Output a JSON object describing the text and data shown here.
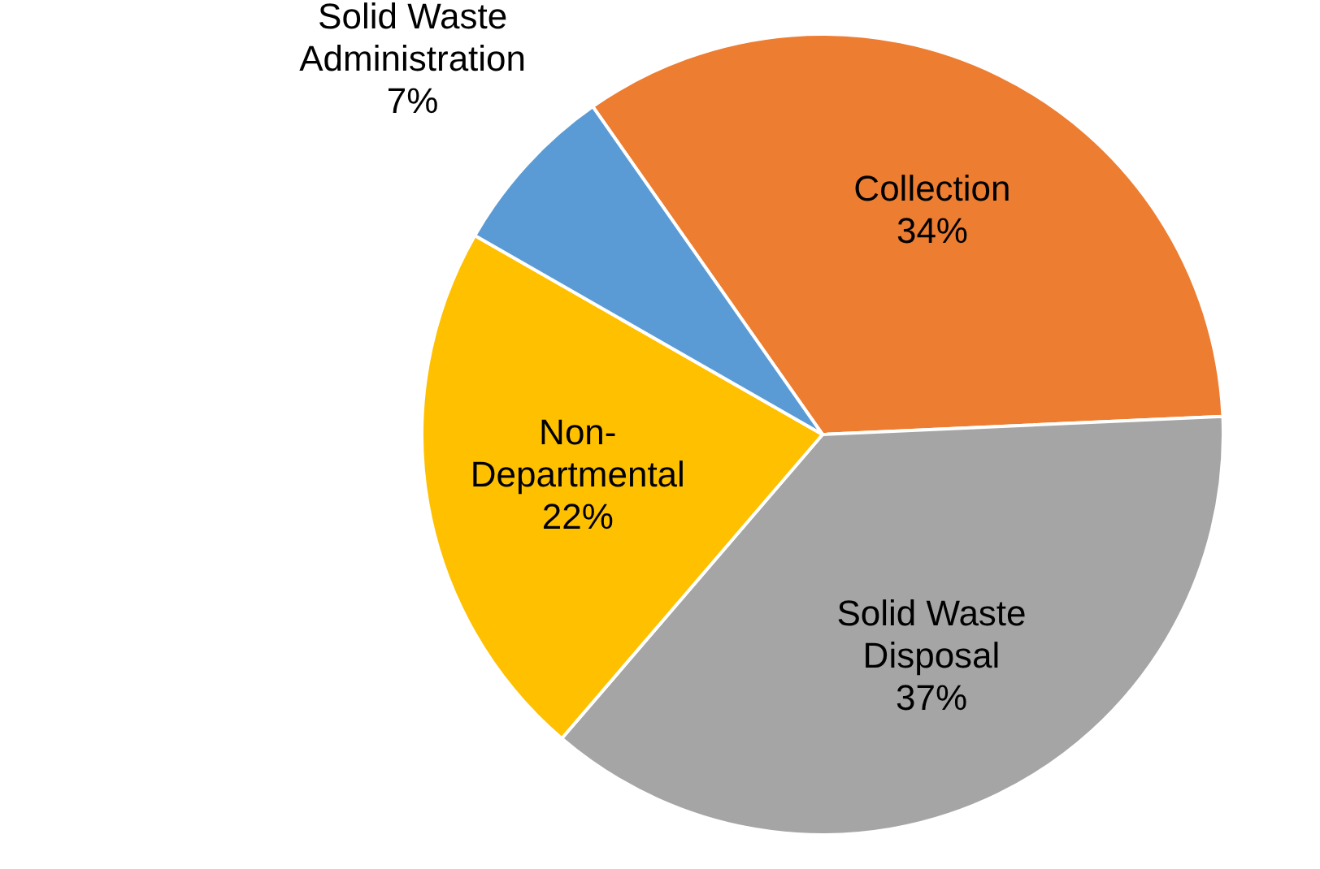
{
  "chart_data": {
    "type": "pie",
    "categories": [
      "Collection",
      "Solid Waste Disposal",
      "Non-Departmental",
      "Solid Waste Administration"
    ],
    "values": [
      34,
      37,
      22,
      7
    ],
    "value_labels": [
      "34%",
      "37%",
      "22%",
      "7%"
    ],
    "colors": [
      "#ed7d31",
      "#a5a5a5",
      "#ffc000",
      "#5b9bd5"
    ],
    "legend": false
  }
}
